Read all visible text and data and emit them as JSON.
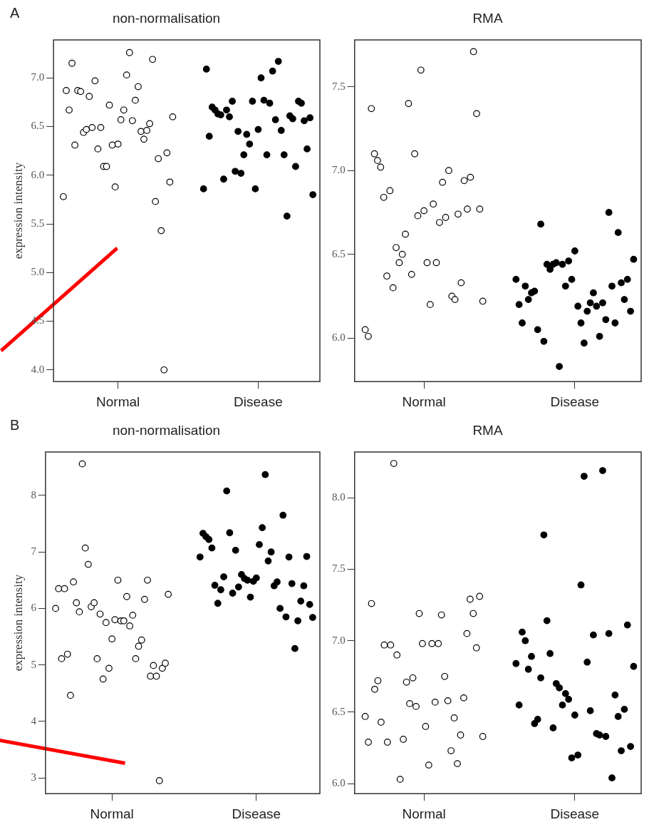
{
  "chart_data": [
    {
      "type": "scatter",
      "title": "non-normalisation",
      "ylabel": "expression intensity",
      "annotations": [
        "A"
      ],
      "marker": "circle",
      "grid": false,
      "categories": [
        "Normal",
        "Disease"
      ],
      "ylim": [
        3.88,
        7.39
      ],
      "yticks": [
        {
          "value": 4,
          "label": "4.0"
        },
        4.5,
        {
          "value": 5,
          "label": "5.0"
        },
        5.5,
        {
          "value": 6,
          "label": "6.0"
        },
        6.5,
        {
          "value": 7,
          "label": "7.0"
        }
      ],
      "series": [
        {
          "color": "#ffffff",
          "x": [
            "Normal",
            "Normal",
            "Normal",
            "Normal",
            "Normal",
            "Normal",
            "Normal",
            "Normal",
            "Normal",
            "Normal",
            "Normal",
            "Normal",
            "Normal",
            "Normal",
            "Normal",
            "Normal",
            "Normal",
            "Normal",
            "Normal",
            "Normal",
            "Normal",
            "Normal",
            "Normal",
            "Normal",
            "Normal",
            "Normal",
            "Normal",
            "Normal",
            "Normal",
            "Normal",
            "Normal",
            "Normal",
            "Normal",
            "Normal",
            "Normal",
            "Normal",
            "Normal",
            "Normal",
            "Normal"
          ],
          "values": [
            5.78,
            6.87,
            6.67,
            7.15,
            6.31,
            6.87,
            6.86,
            6.44,
            6.47,
            6.81,
            6.49,
            6.97,
            6.27,
            6.49,
            6.09,
            6.09,
            6.72,
            6.31,
            5.88,
            6.32,
            6.57,
            6.67,
            7.03,
            7.26,
            6.56,
            6.77,
            6.91,
            6.45,
            6.37,
            6.46,
            6.53,
            7.19,
            5.73,
            6.17,
            5.43,
            4.0,
            6.23,
            5.93,
            6.6
          ]
        },
        {
          "color": "#000000",
          "x": [
            "Disease",
            "Disease",
            "Disease",
            "Disease",
            "Disease",
            "Disease",
            "Disease",
            "Disease",
            "Disease",
            "Disease",
            "Disease",
            "Disease",
            "Disease",
            "Disease",
            "Disease",
            "Disease",
            "Disease",
            "Disease",
            "Disease",
            "Disease",
            "Disease",
            "Disease",
            "Disease",
            "Disease",
            "Disease",
            "Disease",
            "Disease",
            "Disease",
            "Disease",
            "Disease",
            "Disease",
            "Disease",
            "Disease",
            "Disease",
            "Disease",
            "Disease",
            "Disease",
            "Disease",
            "Disease"
          ],
          "values": [
            5.86,
            7.09,
            6.4,
            6.7,
            6.67,
            6.63,
            6.62,
            5.96,
            6.67,
            6.6,
            6.76,
            6.04,
            6.45,
            6.02,
            6.21,
            6.42,
            6.32,
            6.76,
            5.86,
            6.47,
            7.0,
            6.77,
            6.21,
            6.74,
            7.07,
            6.57,
            7.17,
            6.46,
            6.21,
            5.58,
            6.61,
            6.58,
            6.09,
            6.76,
            6.74,
            6.56,
            6.27,
            6.59,
            5.8
          ]
        }
      ]
    },
    {
      "type": "scatter",
      "title": "RMA",
      "marker": "circle",
      "grid": false,
      "categories": [
        "Normal",
        "Disease"
      ],
      "ylim": [
        5.74,
        7.78
      ],
      "yticks": [
        {
          "value": 6,
          "label": "6.0"
        },
        6.5,
        {
          "value": 7,
          "label": "7.0"
        },
        7.5
      ],
      "series": [
        {
          "color": "#ffffff",
          "x": [
            "Normal",
            "Normal",
            "Normal",
            "Normal",
            "Normal",
            "Normal",
            "Normal",
            "Normal",
            "Normal",
            "Normal",
            "Normal",
            "Normal",
            "Normal",
            "Normal",
            "Normal",
            "Normal",
            "Normal",
            "Normal",
            "Normal",
            "Normal",
            "Normal",
            "Normal",
            "Normal",
            "Normal",
            "Normal",
            "Normal",
            "Normal",
            "Normal",
            "Normal",
            "Normal",
            "Normal",
            "Normal",
            "Normal",
            "Normal",
            "Normal",
            "Normal",
            "Normal",
            "Normal",
            "Normal"
          ],
          "values": [
            6.05,
            6.01,
            7.37,
            7.1,
            7.06,
            7.02,
            6.84,
            6.37,
            6.88,
            6.3,
            6.54,
            6.45,
            6.5,
            6.62,
            7.4,
            6.38,
            7.1,
            6.73,
            7.6,
            6.76,
            6.45,
            6.2,
            6.8,
            6.45,
            6.69,
            6.93,
            6.72,
            7.0,
            6.25,
            6.23,
            6.74,
            6.33,
            6.94,
            6.77,
            6.96,
            7.71,
            7.34,
            6.77,
            6.22
          ]
        },
        {
          "color": "#000000",
          "x": [
            "Disease",
            "Disease",
            "Disease",
            "Disease",
            "Disease",
            "Disease",
            "Disease",
            "Disease",
            "Disease",
            "Disease",
            "Disease",
            "Disease",
            "Disease",
            "Disease",
            "Disease",
            "Disease",
            "Disease",
            "Disease",
            "Disease",
            "Disease",
            "Disease",
            "Disease",
            "Disease",
            "Disease",
            "Disease",
            "Disease",
            "Disease",
            "Disease",
            "Disease",
            "Disease",
            "Disease",
            "Disease",
            "Disease",
            "Disease",
            "Disease",
            "Disease",
            "Disease",
            "Disease",
            "Disease"
          ],
          "values": [
            6.35,
            6.2,
            6.09,
            6.31,
            6.23,
            6.27,
            6.28,
            6.05,
            6.68,
            5.98,
            6.44,
            6.41,
            6.44,
            6.45,
            5.83,
            6.44,
            6.31,
            6.46,
            6.35,
            6.52,
            6.19,
            6.09,
            5.97,
            6.16,
            6.21,
            6.27,
            6.19,
            6.01,
            6.21,
            6.11,
            6.75,
            6.31,
            6.09,
            6.63,
            6.33,
            6.23,
            6.35,
            6.16,
            6.47
          ]
        }
      ]
    },
    {
      "type": "scatter",
      "title": "non-normalisation",
      "ylabel": "expression intensity",
      "annotations": [
        "B"
      ],
      "marker": "circle",
      "grid": false,
      "categories": [
        "Normal",
        "Disease"
      ],
      "ylim": [
        2.72,
        8.77
      ],
      "yticks": [
        3,
        4,
        5,
        6,
        7,
        8
      ],
      "series": [
        {
          "color": "#ffffff",
          "x": [
            "Normal",
            "Normal",
            "Normal",
            "Normal",
            "Normal",
            "Normal",
            "Normal",
            "Normal",
            "Normal",
            "Normal",
            "Normal",
            "Normal",
            "Normal",
            "Normal",
            "Normal",
            "Normal",
            "Normal",
            "Normal",
            "Normal",
            "Normal",
            "Normal",
            "Normal",
            "Normal",
            "Normal",
            "Normal",
            "Normal",
            "Normal",
            "Normal",
            "Normal",
            "Normal",
            "Normal",
            "Normal",
            "Normal",
            "Normal",
            "Normal",
            "Normal",
            "Normal",
            "Normal",
            "Normal"
          ],
          "values": [
            6.0,
            6.35,
            5.11,
            6.35,
            5.19,
            4.46,
            6.47,
            6.1,
            5.94,
            8.56,
            7.07,
            6.78,
            6.03,
            6.1,
            5.11,
            5.9,
            4.75,
            5.75,
            4.94,
            5.46,
            5.8,
            6.5,
            5.78,
            5.78,
            6.21,
            5.69,
            5.88,
            5.11,
            5.33,
            5.44,
            6.16,
            6.5,
            4.8,
            4.99,
            4.8,
            2.95,
            4.94,
            5.03,
            6.25
          ]
        },
        {
          "color": "#000000",
          "x": [
            "Disease",
            "Disease",
            "Disease",
            "Disease",
            "Disease",
            "Disease",
            "Disease",
            "Disease",
            "Disease",
            "Disease",
            "Disease",
            "Disease",
            "Disease",
            "Disease",
            "Disease",
            "Disease",
            "Disease",
            "Disease",
            "Disease",
            "Disease",
            "Disease",
            "Disease",
            "Disease",
            "Disease",
            "Disease",
            "Disease",
            "Disease",
            "Disease",
            "Disease",
            "Disease",
            "Disease",
            "Disease",
            "Disease",
            "Disease",
            "Disease",
            "Disease",
            "Disease",
            "Disease",
            "Disease"
          ],
          "values": [
            6.91,
            7.33,
            7.27,
            7.22,
            7.07,
            6.41,
            6.09,
            6.33,
            6.56,
            8.08,
            7.34,
            6.27,
            7.03,
            6.38,
            6.6,
            6.53,
            6.5,
            6.2,
            6.48,
            6.54,
            7.13,
            7.43,
            8.37,
            6.84,
            7.0,
            6.4,
            6.47,
            6.0,
            7.65,
            5.85,
            6.91,
            6.44,
            5.29,
            5.78,
            6.13,
            6.4,
            6.92,
            6.07,
            5.84
          ]
        }
      ]
    },
    {
      "type": "scatter",
      "title": "RMA",
      "marker": "circle",
      "grid": false,
      "categories": [
        "Normal",
        "Disease"
      ],
      "ylim": [
        5.93,
        8.32
      ],
      "yticks": [
        {
          "value": 6,
          "label": "6.0"
        },
        6.5,
        {
          "value": 7,
          "label": "7.0"
        },
        7.5,
        {
          "value": 8,
          "label": "8.0"
        }
      ],
      "series": [
        {
          "color": "#ffffff",
          "x": [
            "Normal",
            "Normal",
            "Normal",
            "Normal",
            "Normal",
            "Normal",
            "Normal",
            "Normal",
            "Normal",
            "Normal",
            "Normal",
            "Normal",
            "Normal",
            "Normal",
            "Normal",
            "Normal",
            "Normal",
            "Normal",
            "Normal",
            "Normal",
            "Normal",
            "Normal",
            "Normal",
            "Normal",
            "Normal",
            "Normal",
            "Normal",
            "Normal",
            "Normal",
            "Normal",
            "Normal",
            "Normal",
            "Normal",
            "Normal",
            "Normal",
            "Normal",
            "Normal",
            "Normal"
          ],
          "values": [
            6.47,
            6.29,
            7.26,
            6.66,
            6.72,
            6.43,
            6.97,
            6.29,
            6.97,
            8.24,
            6.9,
            6.03,
            6.31,
            6.71,
            6.56,
            6.74,
            6.54,
            7.19,
            6.98,
            6.4,
            6.13,
            6.98,
            6.57,
            6.98,
            7.18,
            6.75,
            6.58,
            6.23,
            6.46,
            6.14,
            6.34,
            6.6,
            7.05,
            7.29,
            7.19,
            6.95,
            7.31,
            6.33
          ]
        },
        {
          "color": "#000000",
          "x": [
            "Disease",
            "Disease",
            "Disease",
            "Disease",
            "Disease",
            "Disease",
            "Disease",
            "Disease",
            "Disease",
            "Disease",
            "Disease",
            "Disease",
            "Disease",
            "Disease",
            "Disease",
            "Disease",
            "Disease",
            "Disease",
            "Disease",
            "Disease",
            "Disease",
            "Disease",
            "Disease",
            "Disease",
            "Disease",
            "Disease",
            "Disease",
            "Disease",
            "Disease",
            "Disease",
            "Disease",
            "Disease",
            "Disease",
            "Disease",
            "Disease",
            "Disease",
            "Disease",
            "Disease",
            "Disease"
          ],
          "values": [
            6.84,
            6.55,
            7.06,
            7.0,
            6.8,
            6.89,
            6.42,
            6.45,
            6.74,
            7.74,
            7.14,
            6.91,
            6.39,
            6.7,
            6.67,
            6.55,
            6.63,
            6.59,
            6.18,
            6.48,
            6.2,
            7.39,
            8.15,
            6.85,
            6.51,
            7.04,
            6.35,
            6.34,
            8.19,
            6.33,
            7.05,
            6.04,
            6.62,
            6.47,
            6.23,
            6.52,
            7.11,
            6.26,
            6.82
          ]
        }
      ]
    }
  ]
}
